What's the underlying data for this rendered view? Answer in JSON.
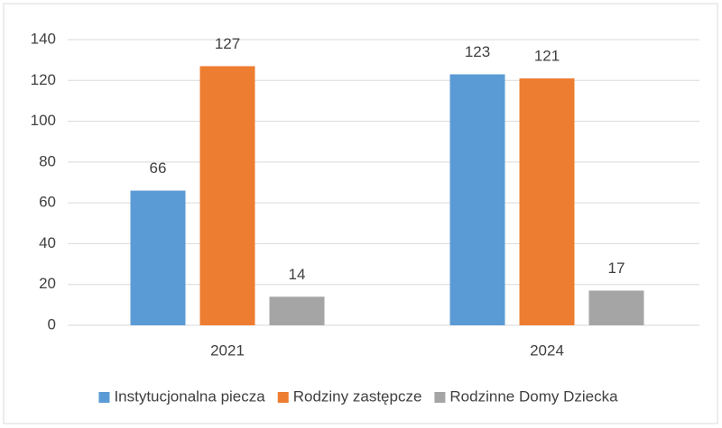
{
  "chart_data": {
    "type": "bar",
    "categories": [
      "2021",
      "2024"
    ],
    "series": [
      {
        "name": "Instytucjonalna piecza",
        "color": "#5b9bd5",
        "values": [
          66,
          123
        ]
      },
      {
        "name": "Rodziny zastępcze",
        "color": "#ed7d31",
        "values": [
          127,
          121
        ]
      },
      {
        "name": "Rodzinne Domy Dziecka",
        "color": "#a5a5a5",
        "values": [
          14,
          17
        ]
      }
    ],
    "ylim": [
      0,
      140
    ],
    "yticks": [
      0,
      20,
      40,
      60,
      80,
      100,
      120,
      140
    ],
    "grid": true,
    "legend": "bottom"
  }
}
